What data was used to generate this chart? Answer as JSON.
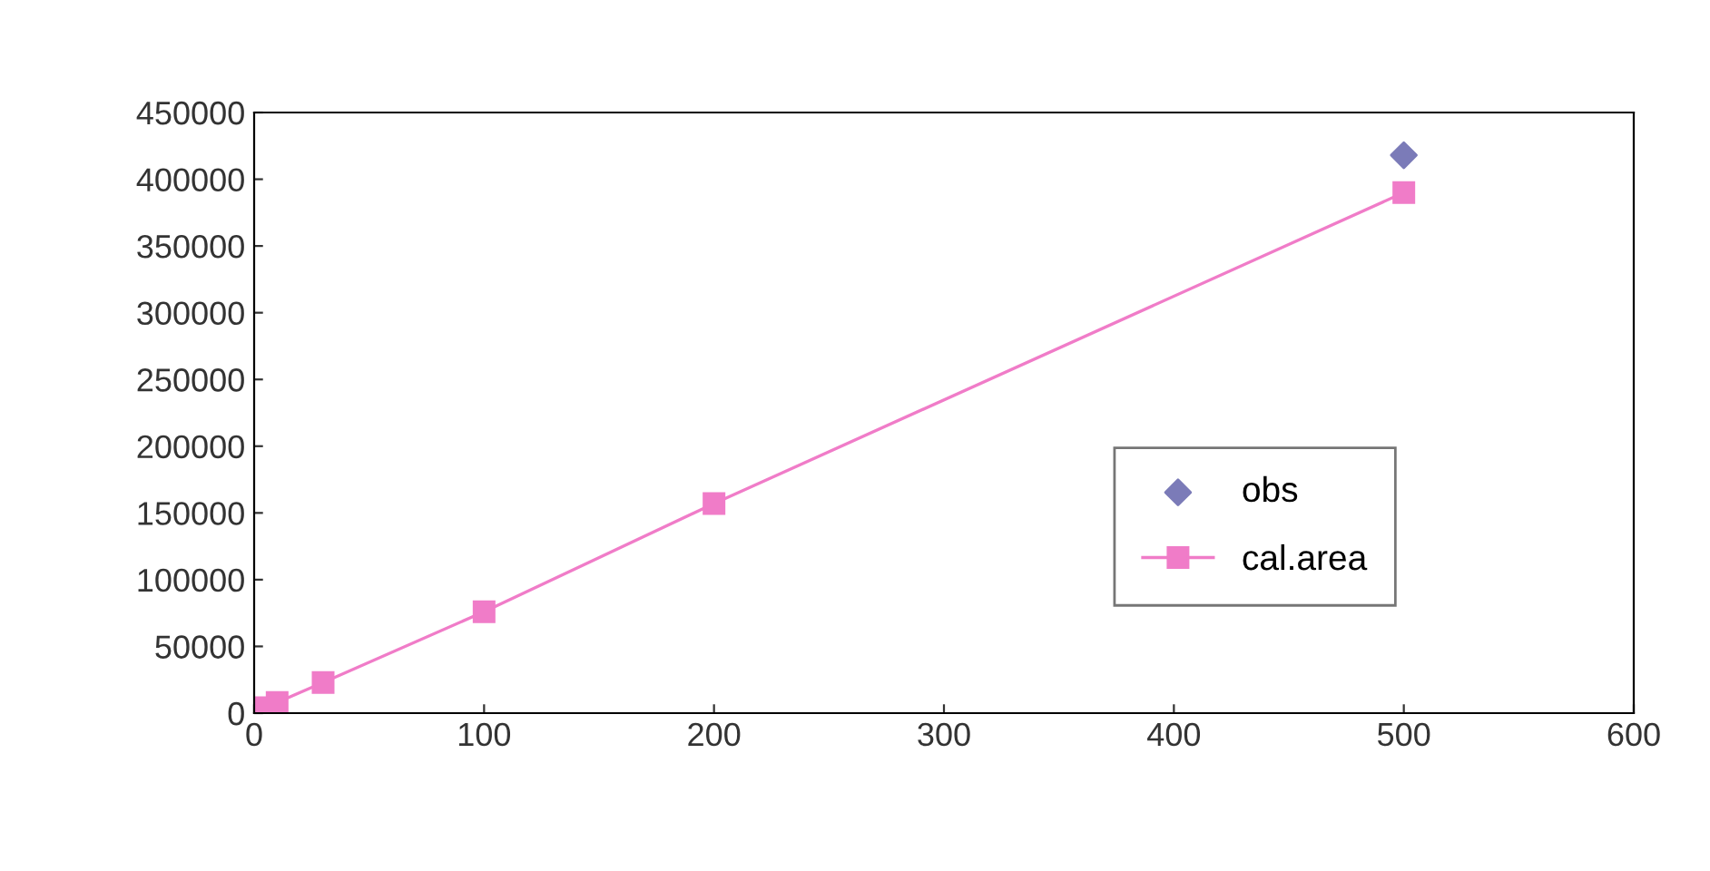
{
  "chart_data": {
    "type": "line",
    "x": [
      1,
      5,
      10,
      30,
      100,
      200,
      500
    ],
    "series": [
      {
        "name": "obs",
        "type": "scatter",
        "marker": "diamond",
        "color": "#7b7bb8",
        "x": [
          500
        ],
        "values": [
          418000
        ]
      },
      {
        "name": "cal.area",
        "marker": "square",
        "color": "#f07cc8",
        "values": [
          1000,
          4000,
          8000,
          23000,
          76000,
          157000,
          390000
        ]
      }
    ],
    "xlim": [
      0,
      600
    ],
    "xticks": [
      0,
      100,
      200,
      300,
      400,
      500,
      600
    ],
    "ylim": [
      0,
      450000
    ],
    "yticks": [
      0,
      50000,
      100000,
      150000,
      200000,
      250000,
      300000,
      350000,
      400000,
      450000
    ],
    "grid": false,
    "legend": "lower right"
  }
}
